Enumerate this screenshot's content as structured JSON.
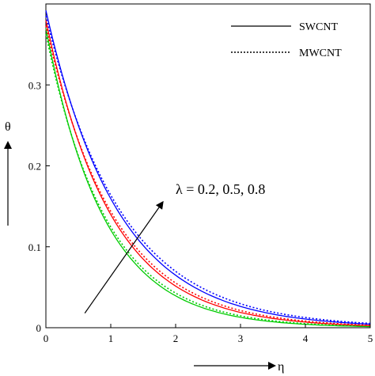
{
  "chart_data": {
    "type": "line",
    "title": "",
    "xlabel": "η",
    "ylabel": "θ",
    "xlim": [
      0,
      5
    ],
    "ylim": [
      0,
      0.4
    ],
    "x_ticks": [
      0,
      1,
      2,
      3,
      4,
      5
    ],
    "y_ticks": [
      0,
      0.1,
      0.2,
      0.3
    ],
    "x_tick_labels": [
      "0",
      "1",
      "2",
      "3",
      "4",
      "5"
    ],
    "y_tick_labels": [
      "0",
      "0.1",
      "0.2",
      "0.3"
    ],
    "grid": false,
    "legend": {
      "placement": "top-right",
      "entries": [
        {
          "label": "SWCNT",
          "style": "solid"
        },
        {
          "label": "MWCNT",
          "style": "dotted"
        }
      ]
    },
    "annotation": {
      "text": "λ = 0.2, 0.5, 0.8",
      "arrow_from": [
        0.6,
        0.018
      ],
      "arrow_to": [
        1.8,
        0.155
      ]
    },
    "line_colors": {
      "λ=0.2": "#00cc00",
      "λ=0.5": "#ff0000",
      "λ=0.8": "#0000ff"
    },
    "series": [
      {
        "lambda": 0.2,
        "nanotube": "SWCNT",
        "style": "solid",
        "color": "#00cc00",
        "theta0": 0.37,
        "decay": 1.12
      },
      {
        "lambda": 0.2,
        "nanotube": "MWCNT",
        "style": "dotted",
        "color": "#00cc00",
        "theta0": 0.363,
        "decay": 1.07
      },
      {
        "lambda": 0.5,
        "nanotube": "SWCNT",
        "style": "solid",
        "color": "#ff0000",
        "theta0": 0.38,
        "decay": 1.0
      },
      {
        "lambda": 0.5,
        "nanotube": "MWCNT",
        "style": "dotted",
        "color": "#ff0000",
        "theta0": 0.373,
        "decay": 0.955
      },
      {
        "lambda": 0.8,
        "nanotube": "SWCNT",
        "style": "solid",
        "color": "#0000ff",
        "theta0": 0.392,
        "decay": 0.9
      },
      {
        "lambda": 0.8,
        "nanotube": "MWCNT",
        "style": "dotted",
        "color": "#0000ff",
        "theta0": 0.385,
        "decay": 0.855
      }
    ]
  }
}
